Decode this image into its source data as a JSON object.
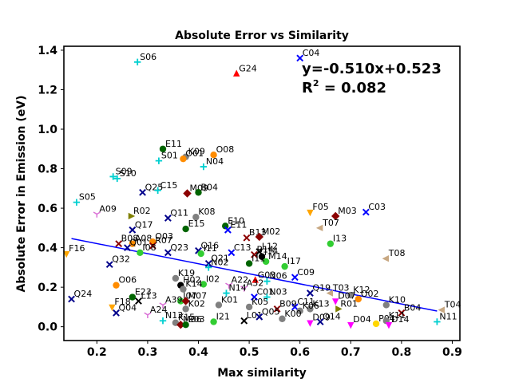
{
  "chart_data": {
    "type": "scatter",
    "title": "Absolute Error vs Similarity",
    "xlabel": "Max similarity",
    "ylabel": "Absolute Error in Emission (eV)",
    "xlim": [
      0.135,
      0.915
    ],
    "ylim": [
      -0.07,
      1.42
    ],
    "xticks": [
      0.2,
      0.3,
      0.4,
      0.5,
      0.6,
      0.7,
      0.8,
      0.9
    ],
    "xtick_labels": [
      "0.2",
      "0.3",
      "0.4",
      "0.5",
      "0.6",
      "0.7",
      "0.8",
      "0.9"
    ],
    "yticks": [
      0.0,
      0.2,
      0.4,
      0.6,
      0.8,
      1.0,
      1.2,
      1.4
    ],
    "ytick_labels": [
      "0.0",
      "0.2",
      "0.4",
      "0.6",
      "0.8",
      "1.0",
      "1.2",
      "1.4"
    ],
    "grid": false,
    "fit_line": {
      "slope": -0.51,
      "intercept": 0.523,
      "x_range": [
        0.15,
        0.87
      ],
      "color": "#0000ff",
      "equation_text": "y=-0.510x+0.523",
      "r2_prefix": "R",
      "r2_sup": "2",
      "r2_suffix": " = 0.082"
    },
    "points": [
      {
        "label": "S06",
        "x": 0.28,
        "y": 1.34,
        "marker": "plus",
        "color": "#00cfd0"
      },
      {
        "label": "G24",
        "x": 0.475,
        "y": 1.28,
        "marker": "triangle-up",
        "color": "#ff0000"
      },
      {
        "label": "C04",
        "x": 0.6,
        "y": 1.36,
        "marker": "x",
        "color": "#0000ff"
      },
      {
        "label": "E11",
        "x": 0.33,
        "y": 0.9,
        "marker": "circle",
        "color": "#006400"
      },
      {
        "label": "K09",
        "x": 0.375,
        "y": 0.86,
        "marker": "circle",
        "color": "#808080"
      },
      {
        "label": "O08",
        "x": 0.43,
        "y": 0.87,
        "marker": "circle",
        "color": "#ff8c00"
      },
      {
        "label": "O01",
        "x": 0.37,
        "y": 0.85,
        "marker": "circle",
        "color": "#ff8c00"
      },
      {
        "label": "S01",
        "x": 0.322,
        "y": 0.84,
        "marker": "plus",
        "color": "#00cfd0"
      },
      {
        "label": "N04",
        "x": 0.41,
        "y": 0.81,
        "marker": "plus",
        "color": "#00cfd0"
      },
      {
        "label": "S09",
        "x": 0.232,
        "y": 0.76,
        "marker": "plus",
        "color": "#00cfd0"
      },
      {
        "label": "S10",
        "x": 0.24,
        "y": 0.75,
        "marker": "plus",
        "color": "#00cfd0"
      },
      {
        "label": "Q25",
        "x": 0.29,
        "y": 0.68,
        "marker": "x",
        "color": "#00008b"
      },
      {
        "label": "C15",
        "x": 0.32,
        "y": 0.69,
        "marker": "plus",
        "color": "#00cfd0"
      },
      {
        "label": "M09",
        "x": 0.378,
        "y": 0.675,
        "marker": "diamond",
        "color": "#8b0000"
      },
      {
        "label": "B04",
        "x": 0.4,
        "y": 0.68,
        "marker": "circle",
        "color": "#006400"
      },
      {
        "label": "S05",
        "x": 0.16,
        "y": 0.63,
        "marker": "plus",
        "color": "#00cfd0"
      },
      {
        "label": "A09",
        "x": 0.2,
        "y": 0.57,
        "marker": "tri",
        "color": "#da70d6"
      },
      {
        "label": "R02",
        "x": 0.267,
        "y": 0.56,
        "marker": "triangle-right",
        "color": "#808000"
      },
      {
        "label": "Q11",
        "x": 0.34,
        "y": 0.55,
        "marker": "x",
        "color": "#00008b"
      },
      {
        "label": "K08",
        "x": 0.395,
        "y": 0.555,
        "marker": "circle",
        "color": "#808080"
      },
      {
        "label": "E15",
        "x": 0.375,
        "y": 0.495,
        "marker": "circle",
        "color": "#006400"
      },
      {
        "label": "E10",
        "x": 0.453,
        "y": 0.51,
        "marker": "circle",
        "color": "#006400"
      },
      {
        "label": "E11",
        "x": 0.458,
        "y": 0.49,
        "marker": "x",
        "color": "#0000ff"
      },
      {
        "label": "Q17",
        "x": 0.27,
        "y": 0.49,
        "marker": "x",
        "color": "#00008b"
      },
      {
        "label": "B13",
        "x": 0.495,
        "y": 0.45,
        "marker": "x",
        "color": "#8b0000"
      },
      {
        "label": "M02",
        "x": 0.52,
        "y": 0.455,
        "marker": "diamond",
        "color": "#8b0000"
      },
      {
        "label": "B08",
        "x": 0.243,
        "y": 0.42,
        "marker": "x",
        "color": "#8b0000"
      },
      {
        "label": "A08",
        "x": 0.27,
        "y": 0.42,
        "marker": "circle",
        "color": "#ff8c00"
      },
      {
        "label": "Q01",
        "x": 0.26,
        "y": 0.4,
        "marker": "x",
        "color": "#00008b"
      },
      {
        "label": "O03",
        "x": 0.31,
        "y": 0.43,
        "marker": "circle",
        "color": "#ff8c00"
      },
      {
        "label": "R07",
        "x": 0.31,
        "y": 0.41,
        "marker": "x",
        "color": "#8b0000"
      },
      {
        "label": "I08",
        "x": 0.285,
        "y": 0.375,
        "marker": "circle",
        "color": "#32cd32"
      },
      {
        "label": "Q23",
        "x": 0.34,
        "y": 0.375,
        "marker": "x",
        "color": "#00008b"
      },
      {
        "label": "Q16",
        "x": 0.4,
        "y": 0.385,
        "marker": "x",
        "color": "#00008b"
      },
      {
        "label": "I11",
        "x": 0.405,
        "y": 0.37,
        "marker": "circle",
        "color": "#32cd32"
      },
      {
        "label": "C13",
        "x": 0.465,
        "y": 0.375,
        "marker": "x",
        "color": "#0000ff"
      },
      {
        "label": "L12",
        "x": 0.52,
        "y": 0.38,
        "marker": "x",
        "color": "#000000"
      },
      {
        "label": "B14",
        "x": 0.51,
        "y": 0.365,
        "marker": "x",
        "color": "#8b0000"
      },
      {
        "label": "J14",
        "x": 0.525,
        "y": 0.355,
        "marker": "circle",
        "color": "#000000"
      },
      {
        "label": "M14",
        "x": 0.533,
        "y": 0.33,
        "marker": "circle",
        "color": "#32cd32"
      },
      {
        "label": "F16",
        "x": 0.14,
        "y": 0.37,
        "marker": "triangle-down",
        "color": "#ffa500"
      },
      {
        "label": "Q21",
        "x": 0.42,
        "y": 0.32,
        "marker": "x",
        "color": "#00008b"
      },
      {
        "label": "I11",
        "x": 0.5,
        "y": 0.32,
        "marker": "circle",
        "color": "#006400"
      },
      {
        "label": "Q32",
        "x": 0.225,
        "y": 0.315,
        "marker": "x",
        "color": "#00008b"
      },
      {
        "label": "N02",
        "x": 0.42,
        "y": 0.3,
        "marker": "plus",
        "color": "#00cfd0"
      },
      {
        "label": "I17",
        "x": 0.57,
        "y": 0.305,
        "marker": "circle",
        "color": "#32cd32"
      },
      {
        "label": "C09",
        "x": 0.59,
        "y": 0.25,
        "marker": "x",
        "color": "#0000ff"
      },
      {
        "label": "G03",
        "x": 0.512,
        "y": 0.235,
        "marker": "triangle-up",
        "color": "#ff0000"
      },
      {
        "label": "N06",
        "x": 0.535,
        "y": 0.23,
        "marker": "plus",
        "color": "#00cfd0"
      },
      {
        "label": "K19",
        "x": 0.355,
        "y": 0.245,
        "marker": "circle",
        "color": "#808080"
      },
      {
        "label": "O06",
        "x": 0.238,
        "y": 0.21,
        "marker": "circle",
        "color": "#ff8c00"
      },
      {
        "label": "H02",
        "x": 0.365,
        "y": 0.21,
        "marker": "circle",
        "color": "#000000"
      },
      {
        "label": "I02",
        "x": 0.41,
        "y": 0.215,
        "marker": "circle",
        "color": "#32cd32"
      },
      {
        "label": "A22",
        "x": 0.46,
        "y": 0.21,
        "marker": "tri",
        "color": "#da70d6"
      },
      {
        "label": "A32",
        "x": 0.49,
        "y": 0.195,
        "marker": "tri",
        "color": "#da70d6"
      },
      {
        "label": "Q19",
        "x": 0.62,
        "y": 0.17,
        "marker": "x",
        "color": "#00008b"
      },
      {
        "label": "T03",
        "x": 0.66,
        "y": 0.17,
        "marker": "triangle-left",
        "color": "#c8a882"
      },
      {
        "label": "K12",
        "x": 0.7,
        "y": 0.16,
        "marker": "circle",
        "color": "#808080"
      },
      {
        "label": "K14",
        "x": 0.37,
        "y": 0.19,
        "marker": "circle",
        "color": "#808080"
      },
      {
        "label": "N14",
        "x": 0.455,
        "y": 0.17,
        "marker": "plus",
        "color": "#00cfd0"
      },
      {
        "label": "C01",
        "x": 0.51,
        "y": 0.15,
        "marker": "x",
        "color": "#0000ff"
      },
      {
        "label": "N03",
        "x": 0.535,
        "y": 0.15,
        "marker": "plus",
        "color": "#00cfd0"
      },
      {
        "label": "D07",
        "x": 0.67,
        "y": 0.13,
        "marker": "triangle-down",
        "color": "#ff00ff"
      },
      {
        "label": "O02",
        "x": 0.715,
        "y": 0.14,
        "marker": "circle",
        "color": "#ff8c00"
      },
      {
        "label": "E23",
        "x": 0.27,
        "y": 0.15,
        "marker": "circle",
        "color": "#006400"
      },
      {
        "label": "L13",
        "x": 0.282,
        "y": 0.13,
        "marker": "x",
        "color": "#000000"
      },
      {
        "label": "I07",
        "x": 0.365,
        "y": 0.13,
        "marker": "circle",
        "color": "#32cd32"
      },
      {
        "label": "M07",
        "x": 0.375,
        "y": 0.13,
        "marker": "diamond",
        "color": "#8b0000"
      },
      {
        "label": "F18",
        "x": 0.23,
        "y": 0.1,
        "marker": "triangle-down",
        "color": "#ffa500"
      },
      {
        "label": "A39",
        "x": 0.33,
        "y": 0.11,
        "marker": "tri",
        "color": "#da70d6"
      },
      {
        "label": "K01",
        "x": 0.44,
        "y": 0.11,
        "marker": "circle",
        "color": "#808080"
      },
      {
        "label": "K10",
        "x": 0.77,
        "y": 0.11,
        "marker": "circle",
        "color": "#808080"
      },
      {
        "label": "C11",
        "x": 0.59,
        "y": 0.1,
        "marker": "x",
        "color": "#0000ff"
      },
      {
        "label": "B09",
        "x": 0.555,
        "y": 0.09,
        "marker": "x",
        "color": "#8b0000"
      },
      {
        "label": "K13",
        "x": 0.62,
        "y": 0.09,
        "marker": "circle",
        "color": "#808080"
      },
      {
        "label": "R01",
        "x": 0.675,
        "y": 0.09,
        "marker": "triangle-right",
        "color": "#808000"
      },
      {
        "label": "Q04",
        "x": 0.238,
        "y": 0.07,
        "marker": "x",
        "color": "#00008b"
      },
      {
        "label": "A24",
        "x": 0.3,
        "y": 0.06,
        "marker": "tri",
        "color": "#da70d6"
      },
      {
        "label": "B04",
        "x": 0.8,
        "y": 0.07,
        "marker": "x",
        "color": "#8b0000"
      },
      {
        "label": "K02",
        "x": 0.375,
        "y": 0.09,
        "marker": "circle",
        "color": "#808080"
      },
      {
        "label": "K05",
        "x": 0.5,
        "y": 0.1,
        "marker": "circle",
        "color": "#808080"
      },
      {
        "label": "K06",
        "x": 0.6,
        "y": 0.08,
        "marker": "circle",
        "color": "#808080"
      },
      {
        "label": "N13",
        "x": 0.33,
        "y": 0.03,
        "marker": "plus",
        "color": "#00cfd0"
      },
      {
        "label": "K15",
        "x": 0.355,
        "y": 0.02,
        "marker": "circle",
        "color": "#808080"
      },
      {
        "label": "M06",
        "x": 0.365,
        "y": 0.01,
        "marker": "diamond",
        "color": "#8b0000"
      },
      {
        "label": "E03",
        "x": 0.375,
        "y": 0.01,
        "marker": "circle",
        "color": "#006400"
      },
      {
        "label": "I21",
        "x": 0.43,
        "y": 0.025,
        "marker": "circle",
        "color": "#32cd32"
      },
      {
        "label": "L01",
        "x": 0.49,
        "y": 0.03,
        "marker": "x",
        "color": "#000000"
      },
      {
        "label": "Q05",
        "x": 0.52,
        "y": 0.05,
        "marker": "x",
        "color": "#00008b"
      },
      {
        "label": "K00",
        "x": 0.565,
        "y": 0.04,
        "marker": "circle",
        "color": "#808080"
      },
      {
        "label": "D09",
        "x": 0.62,
        "y": 0.02,
        "marker": "triangle-down",
        "color": "#ff00ff"
      },
      {
        "label": "Q14",
        "x": 0.64,
        "y": 0.025,
        "marker": "x",
        "color": "#00008b"
      },
      {
        "label": "D04",
        "x": 0.7,
        "y": 0.01,
        "marker": "triangle-down",
        "color": "#ff00ff"
      },
      {
        "label": "P04",
        "x": 0.75,
        "y": 0.015,
        "marker": "circle",
        "color": "#ffd700"
      },
      {
        "label": "K11",
        "x": 0.77,
        "y": 0.03,
        "marker": "circle",
        "color": "#808080"
      },
      {
        "label": "D14",
        "x": 0.775,
        "y": 0.01,
        "marker": "triangle-down",
        "color": "#ff00ff"
      },
      {
        "label": "N11",
        "x": 0.87,
        "y": 0.025,
        "marker": "plus",
        "color": "#00cfd0"
      },
      {
        "label": "T04",
        "x": 0.88,
        "y": 0.085,
        "marker": "triangle-left",
        "color": "#c8a882"
      },
      {
        "label": "Q24",
        "x": 0.15,
        "y": 0.14,
        "marker": "x",
        "color": "#00008b"
      },
      {
        "label": "F05",
        "x": 0.62,
        "y": 0.58,
        "marker": "triangle-down",
        "color": "#ffa500"
      },
      {
        "label": "M03",
        "x": 0.67,
        "y": 0.56,
        "marker": "diamond",
        "color": "#8b0000"
      },
      {
        "label": "C03",
        "x": 0.73,
        "y": 0.58,
        "marker": "x",
        "color": "#0000ff"
      },
      {
        "label": "T07",
        "x": 0.64,
        "y": 0.5,
        "marker": "triangle-left",
        "color": "#c8a882"
      },
      {
        "label": "I13",
        "x": 0.66,
        "y": 0.42,
        "marker": "circle",
        "color": "#32cd32"
      },
      {
        "label": "T08",
        "x": 0.77,
        "y": 0.345,
        "marker": "triangle-left",
        "color": "#c8a882"
      }
    ]
  }
}
